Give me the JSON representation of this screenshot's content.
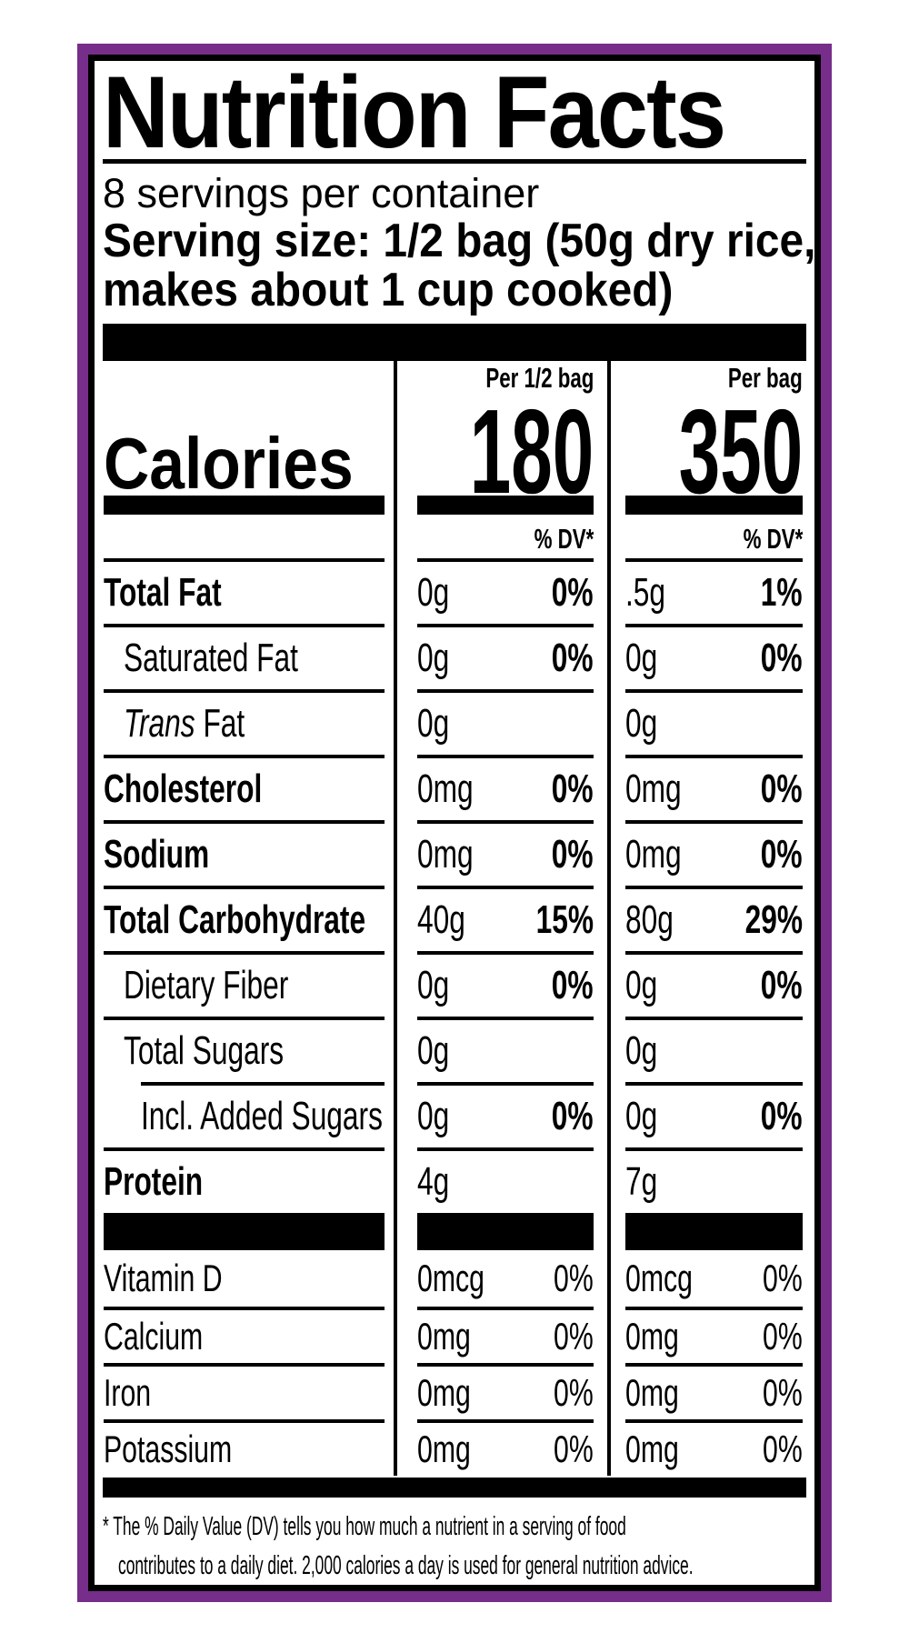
{
  "colors": {
    "border_purple": "#762E8A",
    "ink_black": "#000000",
    "background_white": "#FFFFFF"
  },
  "label": {
    "title": "Nutrition Facts",
    "servings_per_container": "8 servings per container",
    "serving_size_line1": "Serving size: 1/2 bag (50g dry rice,",
    "serving_size_line2": "makes about 1 cup cooked)",
    "column_headers": {
      "per_half_bag": "Per 1/2 bag",
      "per_bag": "Per bag"
    },
    "calories": {
      "label": "Calories",
      "per_half_bag": "180",
      "per_bag": "350"
    },
    "percent_dv_header": "% DV*",
    "nutrients": [
      {
        "name": "Total Fat",
        "bold": true,
        "indent": 0,
        "amount_half_bag": "0g",
        "dv_half_bag": "0%",
        "amount_bag": ".5g",
        "dv_bag": "1%",
        "dv_bold": true
      },
      {
        "name": "Saturated Fat",
        "bold": false,
        "indent": 1,
        "amount_half_bag": "0g",
        "dv_half_bag": "0%",
        "amount_bag": "0g",
        "dv_bag": "0%",
        "dv_bold": true
      },
      {
        "name": "Fat",
        "italic_prefix": "Trans",
        "bold": false,
        "indent": 1,
        "amount_half_bag": "0g",
        "dv_half_bag": "",
        "amount_bag": "0g",
        "dv_bag": "",
        "dv_bold": false
      },
      {
        "name": "Cholesterol",
        "bold": true,
        "indent": 0,
        "amount_half_bag": "0mg",
        "dv_half_bag": "0%",
        "amount_bag": "0mg",
        "dv_bag": "0%",
        "dv_bold": true
      },
      {
        "name": "Sodium",
        "bold": true,
        "indent": 0,
        "amount_half_bag": "0mg",
        "dv_half_bag": "0%",
        "amount_bag": "0mg",
        "dv_bag": "0%",
        "dv_bold": true
      },
      {
        "name": "Total Carbohydrate",
        "bold": true,
        "indent": 0,
        "amount_half_bag": "40g",
        "dv_half_bag": "15%",
        "amount_bag": "80g",
        "dv_bag": "29%",
        "dv_bold": true
      },
      {
        "name": "Dietary Fiber",
        "bold": false,
        "indent": 1,
        "amount_half_bag": "0g",
        "dv_half_bag": "0%",
        "amount_bag": "0g",
        "dv_bag": "0%",
        "dv_bold": true
      },
      {
        "name": "Total Sugars",
        "bold": false,
        "indent": 1,
        "amount_half_bag": "0g",
        "dv_half_bag": "",
        "amount_bag": "0g",
        "dv_bag": "",
        "dv_bold": false
      },
      {
        "name": "Incl. Added Sugars",
        "bold": false,
        "indent": 2,
        "rule_indent": true,
        "amount_half_bag": "0g",
        "dv_half_bag": "0%",
        "amount_bag": "0g",
        "dv_bag": "0%",
        "dv_bold": true
      },
      {
        "name": "Protein",
        "bold": true,
        "indent": 0,
        "amount_half_bag": "4g",
        "dv_half_bag": "",
        "amount_bag": "7g",
        "dv_bag": "",
        "dv_bold": false
      }
    ],
    "vitamins": [
      {
        "name": "Vitamin D",
        "amount_half_bag": "0mcg",
        "dv_half_bag": "0%",
        "amount_bag": "0mcg",
        "dv_bag": "0%"
      },
      {
        "name": "Calcium",
        "amount_half_bag": "0mg",
        "dv_half_bag": "0%",
        "amount_bag": "0mg",
        "dv_bag": "0%"
      },
      {
        "name": "Iron",
        "amount_half_bag": "0mg",
        "dv_half_bag": "0%",
        "amount_bag": "0mg",
        "dv_bag": "0%"
      },
      {
        "name": "Potassium",
        "amount_half_bag": "0mg",
        "dv_half_bag": "0%",
        "amount_bag": "0mg",
        "dv_bag": "0%"
      }
    ],
    "footnote": {
      "line1": "* The % Daily Value (DV) tells you how much a nutrient in a serving of food",
      "line2": "contributes to a daily diet. 2,000 calories a day is used for general nutrition advice."
    }
  }
}
